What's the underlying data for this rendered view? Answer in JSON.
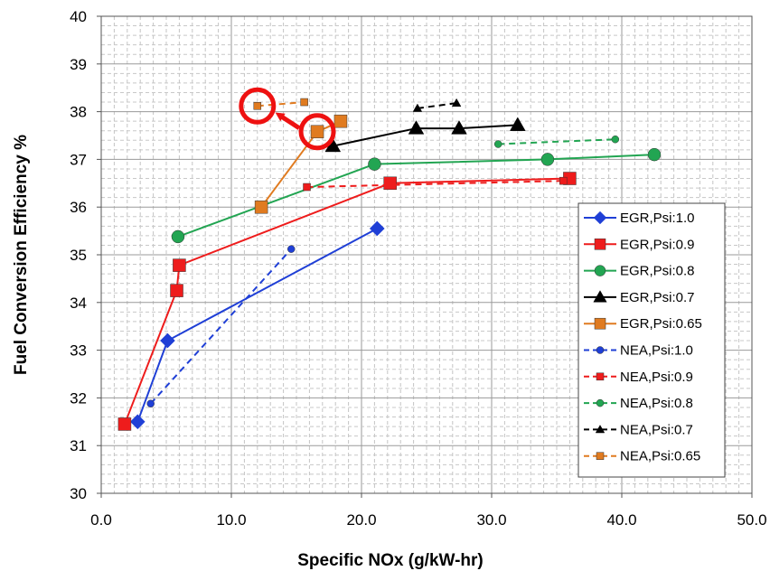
{
  "chart_data": {
    "type": "line",
    "title": "",
    "xlabel": "Specific NOx (g/kW-hr)",
    "ylabel": "Fuel Conversion Efficiency %",
    "xlim": [
      0,
      50
    ],
    "ylim": [
      30,
      40
    ],
    "x_ticks": [
      "0.0",
      "10.0",
      "20.0",
      "30.0",
      "40.0",
      "50.0"
    ],
    "y_ticks": [
      "30",
      "31",
      "32",
      "33",
      "34",
      "35",
      "36",
      "37",
      "38",
      "39",
      "40"
    ],
    "grid": "major and minor, dashed gray",
    "legend_position": "right",
    "series": [
      {
        "name": "EGR,Psi:1.0",
        "color": "#1f3fd6",
        "marker": "diamond",
        "dashed": false,
        "points": [
          [
            2.8,
            31.5
          ],
          [
            5.1,
            33.2
          ],
          [
            21.2,
            35.55
          ]
        ]
      },
      {
        "name": "EGR,Psi:0.9",
        "color": "#ee1c1c",
        "marker": "square",
        "dashed": false,
        "points": [
          [
            1.8,
            31.45
          ],
          [
            5.8,
            34.25
          ],
          [
            6.0,
            34.78
          ],
          [
            22.2,
            36.5
          ],
          [
            36.0,
            36.6
          ]
        ]
      },
      {
        "name": "EGR,Psi:0.8",
        "color": "#22a552",
        "marker": "circle",
        "dashed": false,
        "points": [
          [
            5.9,
            35.38
          ],
          [
            21.0,
            36.9
          ],
          [
            34.3,
            37.0
          ],
          [
            42.5,
            37.1
          ]
        ]
      },
      {
        "name": "EGR,Psi:0.7",
        "color": "#000000",
        "marker": "triangle",
        "dashed": false,
        "points": [
          [
            17.8,
            37.28
          ],
          [
            24.2,
            37.65
          ],
          [
            27.5,
            37.65
          ],
          [
            32.0,
            37.72
          ]
        ]
      },
      {
        "name": "EGR,Psi:0.65",
        "color": "#e07b20",
        "marker": "square",
        "dashed": false,
        "points": [
          [
            12.3,
            36.0
          ],
          [
            16.6,
            37.58
          ],
          [
            18.4,
            37.8
          ]
        ]
      },
      {
        "name": "NEA,Psi:1.0",
        "color": "#1f3fd6",
        "marker": "circle",
        "dashed": true,
        "points": [
          [
            3.8,
            31.88
          ],
          [
            14.6,
            35.12
          ]
        ]
      },
      {
        "name": "NEA,Psi:0.9",
        "color": "#ee1c1c",
        "marker": "square",
        "dashed": true,
        "points": [
          [
            15.8,
            36.42
          ],
          [
            35.5,
            36.55
          ]
        ]
      },
      {
        "name": "NEA,Psi:0.8",
        "color": "#22a552",
        "marker": "circle",
        "dashed": true,
        "points": [
          [
            30.5,
            37.32
          ],
          [
            39.5,
            37.42
          ]
        ]
      },
      {
        "name": "NEA,Psi:0.7",
        "color": "#000000",
        "marker": "triangle",
        "dashed": true,
        "points": [
          [
            24.3,
            38.07
          ],
          [
            27.3,
            38.18
          ]
        ]
      },
      {
        "name": "NEA,Psi:0.65",
        "color": "#e07b20",
        "marker": "square",
        "dashed": true,
        "points": [
          [
            12.0,
            38.12
          ],
          [
            15.6,
            38.2
          ]
        ]
      }
    ],
    "annotations": {
      "highlight_color": "#ee1111",
      "circles": [
        [
          12.0,
          38.12
        ],
        [
          16.6,
          37.58
        ]
      ],
      "arrow": {
        "from": [
          16.6,
          37.58
        ],
        "to": [
          12.0,
          38.12
        ]
      }
    }
  }
}
